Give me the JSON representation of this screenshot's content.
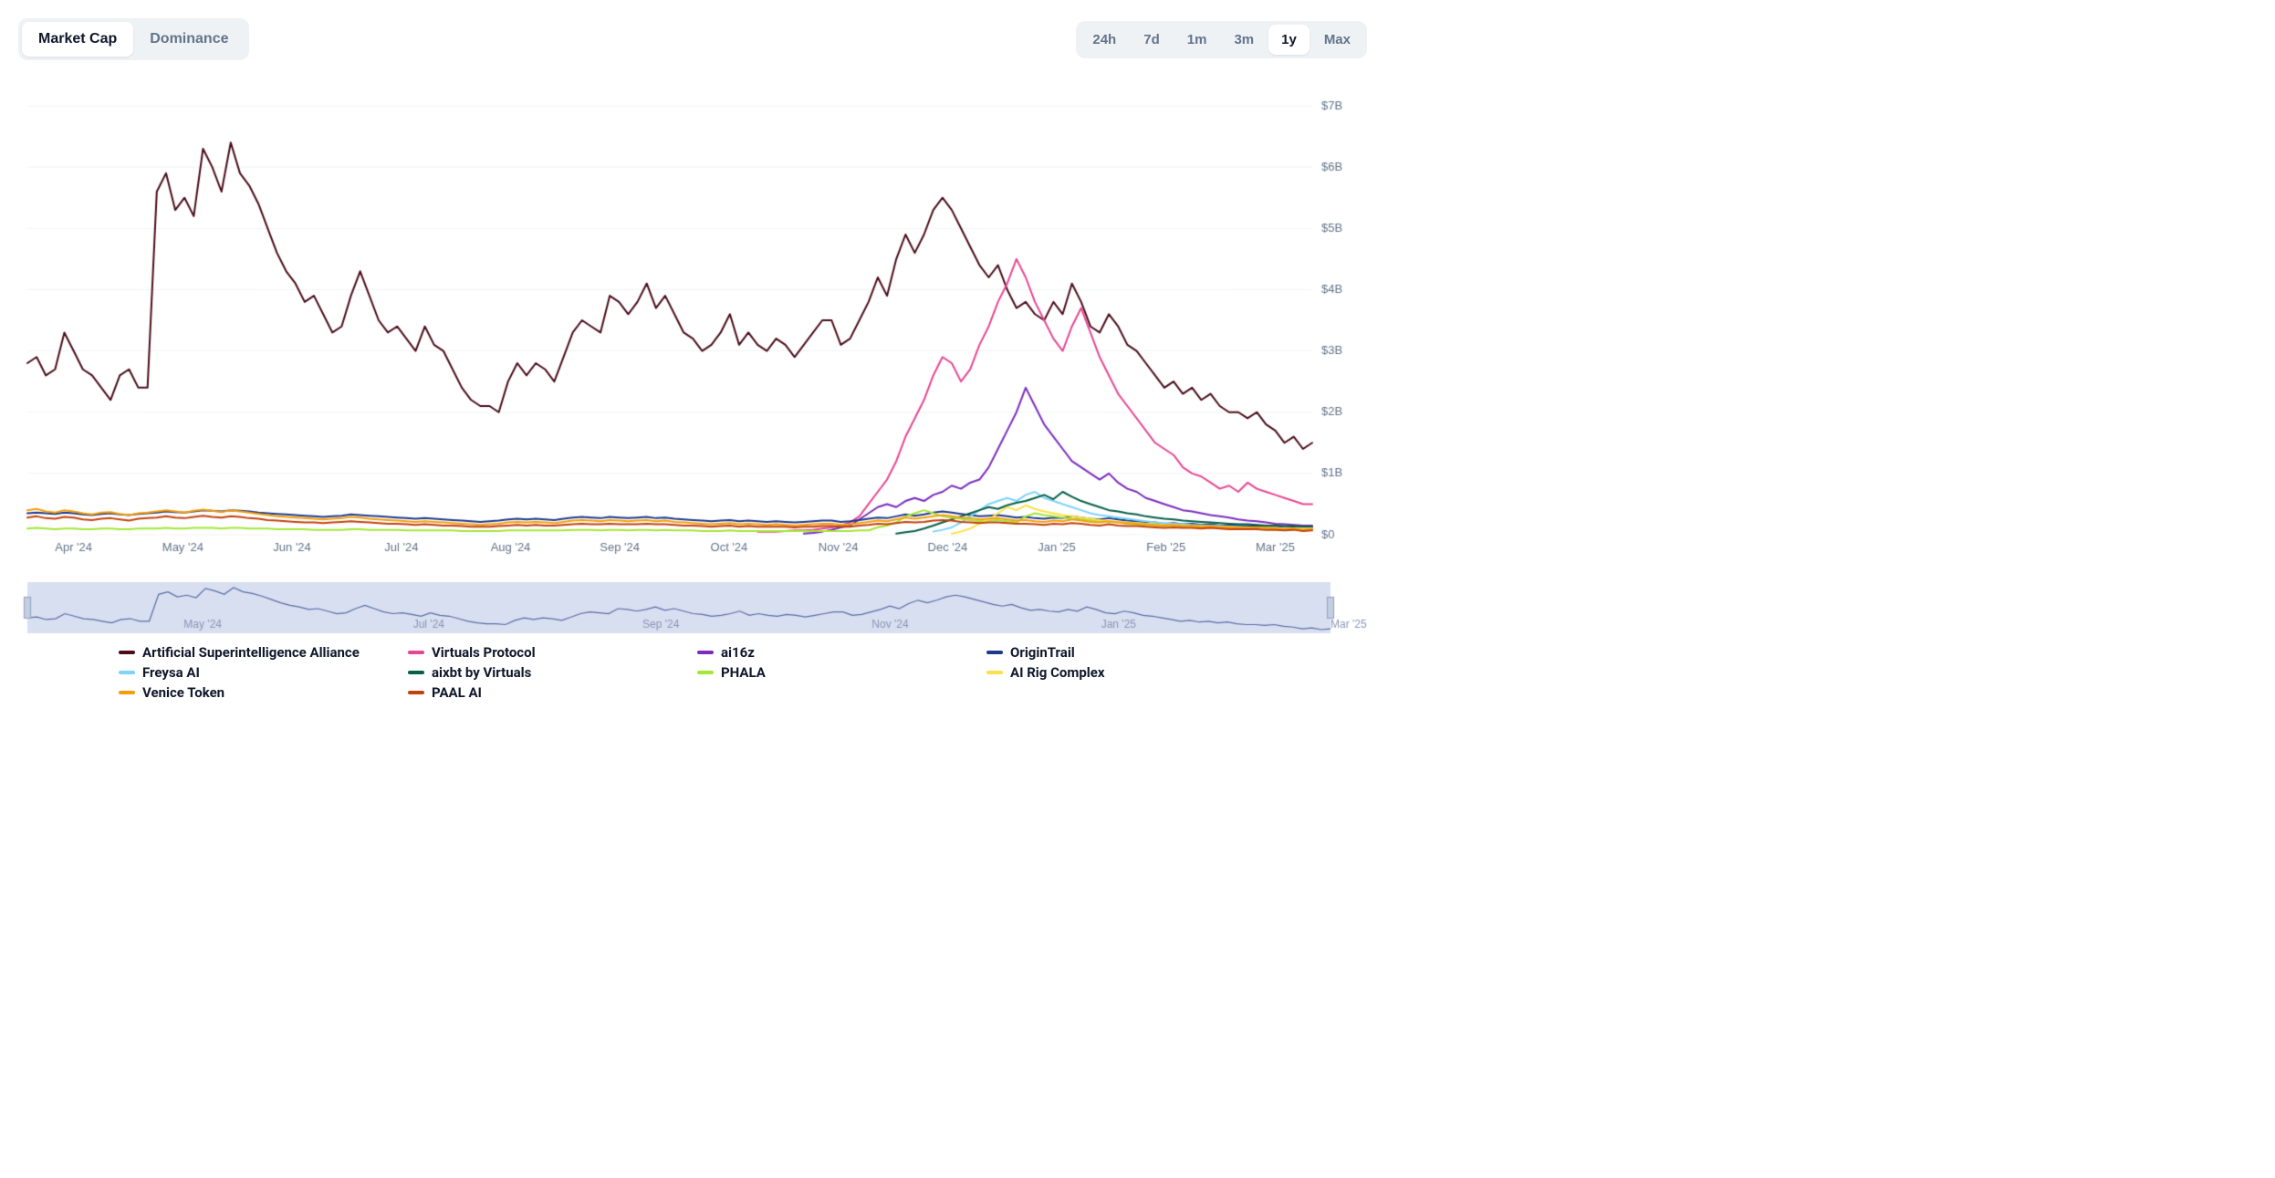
{
  "tabs": {
    "items": [
      {
        "label": "Market Cap",
        "active": true
      },
      {
        "label": "Dominance",
        "active": false
      }
    ]
  },
  "ranges": {
    "items": [
      {
        "label": "24h",
        "active": false
      },
      {
        "label": "7d",
        "active": false
      },
      {
        "label": "1m",
        "active": false
      },
      {
        "label": "3m",
        "active": false
      },
      {
        "label": "1y",
        "active": true
      },
      {
        "label": "Max",
        "active": false
      }
    ]
  },
  "chart": {
    "type": "line",
    "background_color": "#ffffff",
    "grid_color": "#f1f3f5",
    "axis_text_color": "#64748b",
    "axis_fontsize": 13,
    "yaxis": {
      "min": 0,
      "max": 7,
      "tick_step": 1,
      "tick_labels": [
        "$0",
        "$1B",
        "$2B",
        "$3B",
        "$4B",
        "$5B",
        "$6B",
        "$7B"
      ]
    },
    "xaxis": {
      "labels": [
        "Apr '24",
        "May '24",
        "Jun '24",
        "Jul '24",
        "Aug '24",
        "Sep '24",
        "Oct '24",
        "Nov '24",
        "Dec '24",
        "Jan '25",
        "Feb '25",
        "Mar '25"
      ]
    },
    "series": [
      {
        "name": "Artificial Superintelligence Alliance",
        "color": "#4a0d1a",
        "line_width": 2,
        "data": [
          2.8,
          2.9,
          2.6,
          2.7,
          3.3,
          3.0,
          2.7,
          2.6,
          2.4,
          2.2,
          2.6,
          2.7,
          2.4,
          2.4,
          5.6,
          5.9,
          5.3,
          5.5,
          5.2,
          6.3,
          6.0,
          5.6,
          6.4,
          5.9,
          5.7,
          5.4,
          5.0,
          4.6,
          4.3,
          4.1,
          3.8,
          3.9,
          3.6,
          3.3,
          3.4,
          3.9,
          4.3,
          3.9,
          3.5,
          3.3,
          3.4,
          3.2,
          3.0,
          3.4,
          3.1,
          3.0,
          2.7,
          2.4,
          2.2,
          2.1,
          2.1,
          2.0,
          2.5,
          2.8,
          2.6,
          2.8,
          2.7,
          2.5,
          2.9,
          3.3,
          3.5,
          3.4,
          3.3,
          3.9,
          3.8,
          3.6,
          3.8,
          4.1,
          3.7,
          3.9,
          3.6,
          3.3,
          3.2,
          3.0,
          3.1,
          3.3,
          3.6,
          3.1,
          3.3,
          3.1,
          3.0,
          3.2,
          3.1,
          2.9,
          3.1,
          3.3,
          3.5,
          3.5,
          3.1,
          3.2,
          3.5,
          3.8,
          4.2,
          3.9,
          4.5,
          4.9,
          4.6,
          4.9,
          5.3,
          5.5,
          5.3,
          5.0,
          4.7,
          4.4,
          4.2,
          4.4,
          4.0,
          3.7,
          3.8,
          3.6,
          3.5,
          3.8,
          3.6,
          4.1,
          3.8,
          3.4,
          3.3,
          3.6,
          3.4,
          3.1,
          3.0,
          2.8,
          2.6,
          2.4,
          2.5,
          2.3,
          2.4,
          2.2,
          2.3,
          2.1,
          2.0,
          2.0,
          1.9,
          2.0,
          1.8,
          1.7,
          1.5,
          1.6,
          1.4,
          1.5
        ]
      },
      {
        "name": "Virtuals Protocol",
        "color": "#e74694",
        "line_width": 2,
        "start_index": 79,
        "data": [
          0.05,
          0.05,
          0.05,
          0.06,
          0.07,
          0.07,
          0.08,
          0.1,
          0.12,
          0.15,
          0.2,
          0.3,
          0.5,
          0.7,
          0.9,
          1.2,
          1.6,
          1.9,
          2.2,
          2.6,
          2.9,
          2.8,
          2.5,
          2.7,
          3.1,
          3.4,
          3.8,
          4.1,
          4.5,
          4.2,
          3.8,
          3.5,
          3.2,
          3.0,
          3.4,
          3.7,
          3.3,
          2.9,
          2.6,
          2.3,
          2.1,
          1.9,
          1.7,
          1.5,
          1.4,
          1.3,
          1.1,
          1.0,
          0.95,
          0.85,
          0.75,
          0.8,
          0.7,
          0.85,
          0.75,
          0.7,
          0.65,
          0.6,
          0.55,
          0.5,
          0.5
        ]
      },
      {
        "name": "ai16z",
        "color": "#7b2cbf",
        "line_width": 2,
        "start_index": 84,
        "data": [
          0.02,
          0.03,
          0.05,
          0.08,
          0.12,
          0.15,
          0.25,
          0.35,
          0.45,
          0.5,
          0.45,
          0.55,
          0.6,
          0.55,
          0.65,
          0.7,
          0.8,
          0.75,
          0.85,
          0.9,
          1.1,
          1.4,
          1.7,
          2.0,
          2.4,
          2.1,
          1.8,
          1.6,
          1.4,
          1.2,
          1.1,
          1.0,
          0.9,
          1.0,
          0.85,
          0.75,
          0.7,
          0.6,
          0.55,
          0.5,
          0.45,
          0.4,
          0.38,
          0.35,
          0.32,
          0.3,
          0.28,
          0.25,
          0.23,
          0.22,
          0.2,
          0.18,
          0.17,
          0.16,
          0.15,
          0.15
        ]
      },
      {
        "name": "OriginTrail",
        "color": "#1e3a8a",
        "line_width": 2,
        "data": [
          0.35,
          0.36,
          0.35,
          0.34,
          0.36,
          0.35,
          0.33,
          0.32,
          0.34,
          0.35,
          0.33,
          0.32,
          0.34,
          0.35,
          0.36,
          0.38,
          0.37,
          0.36,
          0.38,
          0.4,
          0.39,
          0.38,
          0.4,
          0.39,
          0.38,
          0.36,
          0.35,
          0.34,
          0.33,
          0.32,
          0.31,
          0.3,
          0.29,
          0.3,
          0.31,
          0.33,
          0.32,
          0.31,
          0.3,
          0.29,
          0.28,
          0.27,
          0.26,
          0.27,
          0.26,
          0.25,
          0.24,
          0.23,
          0.22,
          0.21,
          0.22,
          0.23,
          0.25,
          0.26,
          0.25,
          0.26,
          0.25,
          0.24,
          0.26,
          0.28,
          0.29,
          0.28,
          0.27,
          0.29,
          0.28,
          0.27,
          0.28,
          0.29,
          0.27,
          0.28,
          0.26,
          0.25,
          0.24,
          0.23,
          0.22,
          0.23,
          0.24,
          0.22,
          0.23,
          0.22,
          0.21,
          0.22,
          0.21,
          0.2,
          0.21,
          0.22,
          0.23,
          0.23,
          0.21,
          0.22,
          0.24,
          0.26,
          0.28,
          0.27,
          0.3,
          0.33,
          0.31,
          0.33,
          0.36,
          0.38,
          0.36,
          0.34,
          0.32,
          0.3,
          0.31,
          0.32,
          0.3,
          0.28,
          0.29,
          0.27,
          0.26,
          0.28,
          0.27,
          0.3,
          0.28,
          0.26,
          0.25,
          0.27,
          0.25,
          0.23,
          0.22,
          0.21,
          0.2,
          0.18,
          0.19,
          0.17,
          0.18,
          0.16,
          0.17,
          0.15,
          0.15,
          0.15,
          0.14,
          0.15,
          0.13,
          0.13,
          0.11,
          0.12,
          0.1,
          0.11
        ]
      },
      {
        "name": "Freysa AI",
        "color": "#7dd3fc",
        "line_width": 2,
        "start_index": 98,
        "data": [
          0.05,
          0.08,
          0.12,
          0.2,
          0.3,
          0.4,
          0.5,
          0.55,
          0.6,
          0.55,
          0.65,
          0.7,
          0.6,
          0.55,
          0.5,
          0.45,
          0.4,
          0.35,
          0.32,
          0.3,
          0.28,
          0.26,
          0.24,
          0.22,
          0.2,
          0.19,
          0.18,
          0.17,
          0.16,
          0.15,
          0.15,
          0.14,
          0.13,
          0.13,
          0.12,
          0.12,
          0.11,
          0.11,
          0.1,
          0.1,
          0.1,
          0.1
        ]
      },
      {
        "name": "aixbt by Virtuals",
        "color": "#065f46",
        "line_width": 2,
        "start_index": 94,
        "data": [
          0.02,
          0.04,
          0.06,
          0.1,
          0.15,
          0.2,
          0.25,
          0.3,
          0.35,
          0.4,
          0.45,
          0.42,
          0.48,
          0.52,
          0.55,
          0.6,
          0.65,
          0.58,
          0.7,
          0.62,
          0.55,
          0.5,
          0.45,
          0.4,
          0.38,
          0.35,
          0.33,
          0.3,
          0.28,
          0.26,
          0.25,
          0.23,
          0.22,
          0.21,
          0.2,
          0.19,
          0.18,
          0.17,
          0.17,
          0.16,
          0.15,
          0.15,
          0.14,
          0.14,
          0.13,
          0.13
        ]
      },
      {
        "name": "PHALA",
        "color": "#a3e635",
        "line_width": 2,
        "data": [
          0.1,
          0.11,
          0.1,
          0.09,
          0.1,
          0.1,
          0.09,
          0.09,
          0.1,
          0.1,
          0.09,
          0.09,
          0.1,
          0.1,
          0.1,
          0.11,
          0.1,
          0.1,
          0.11,
          0.11,
          0.11,
          0.1,
          0.11,
          0.11,
          0.1,
          0.1,
          0.1,
          0.09,
          0.09,
          0.09,
          0.09,
          0.08,
          0.08,
          0.08,
          0.08,
          0.09,
          0.09,
          0.08,
          0.08,
          0.08,
          0.08,
          0.07,
          0.07,
          0.07,
          0.07,
          0.07,
          0.07,
          0.06,
          0.06,
          0.06,
          0.06,
          0.06,
          0.07,
          0.07,
          0.07,
          0.07,
          0.07,
          0.07,
          0.07,
          0.08,
          0.08,
          0.08,
          0.07,
          0.08,
          0.08,
          0.07,
          0.08,
          0.08,
          0.07,
          0.08,
          0.07,
          0.07,
          0.07,
          0.06,
          0.06,
          0.06,
          0.07,
          0.06,
          0.06,
          0.06,
          0.06,
          0.06,
          0.06,
          0.06,
          0.06,
          0.06,
          0.06,
          0.06,
          0.06,
          0.06,
          0.07,
          0.07,
          0.12,
          0.15,
          0.2,
          0.3,
          0.35,
          0.4,
          0.35,
          0.3,
          0.28,
          0.26,
          0.24,
          0.22,
          0.23,
          0.24,
          0.22,
          0.2,
          0.3,
          0.35,
          0.32,
          0.3,
          0.28,
          0.26,
          0.25,
          0.23,
          0.22,
          0.21,
          0.2,
          0.18,
          0.17,
          0.16,
          0.15,
          0.14,
          0.15,
          0.13,
          0.14,
          0.12,
          0.13,
          0.12,
          0.12,
          0.12,
          0.11,
          0.12,
          0.1,
          0.1,
          0.09,
          0.1,
          0.08,
          0.09
        ]
      },
      {
        "name": "AI Rig Complex",
        "color": "#fde047",
        "line_width": 2,
        "start_index": 100,
        "data": [
          0.02,
          0.05,
          0.1,
          0.18,
          0.25,
          0.35,
          0.45,
          0.4,
          0.48,
          0.42,
          0.38,
          0.35,
          0.32,
          0.3,
          0.28,
          0.26,
          0.24,
          0.22,
          0.21,
          0.2,
          0.19,
          0.18,
          0.17,
          0.16,
          0.16,
          0.15,
          0.15,
          0.14,
          0.14,
          0.13,
          0.13,
          0.12,
          0.12,
          0.11,
          0.11,
          0.11,
          0.1,
          0.1,
          0.1,
          0.1
        ]
      },
      {
        "name": "Venice Token",
        "color": "#f59e0b",
        "line_width": 2,
        "data": [
          0.4,
          0.42,
          0.38,
          0.36,
          0.4,
          0.38,
          0.35,
          0.33,
          0.36,
          0.37,
          0.34,
          0.32,
          0.35,
          0.36,
          0.38,
          0.4,
          0.38,
          0.36,
          0.39,
          0.41,
          0.39,
          0.37,
          0.4,
          0.38,
          0.36,
          0.34,
          0.32,
          0.3,
          0.29,
          0.28,
          0.27,
          0.26,
          0.25,
          0.26,
          0.27,
          0.29,
          0.28,
          0.26,
          0.25,
          0.24,
          0.23,
          0.22,
          0.21,
          0.22,
          0.21,
          0.2,
          0.19,
          0.18,
          0.17,
          0.16,
          0.17,
          0.18,
          0.2,
          0.21,
          0.2,
          0.21,
          0.2,
          0.19,
          0.21,
          0.23,
          0.24,
          0.23,
          0.22,
          0.24,
          0.23,
          0.22,
          0.23,
          0.24,
          0.22,
          0.23,
          0.21,
          0.2,
          0.19,
          0.18,
          0.17,
          0.18,
          0.19,
          0.17,
          0.18,
          0.17,
          0.16,
          0.17,
          0.16,
          0.15,
          0.16,
          0.17,
          0.18,
          0.18,
          0.16,
          0.17,
          0.19,
          0.21,
          0.23,
          0.22,
          0.25,
          0.28,
          0.26,
          0.28,
          0.3,
          0.32,
          0.3,
          0.28,
          0.27,
          0.25,
          0.26,
          0.27,
          0.25,
          0.23,
          0.24,
          0.22,
          0.21,
          0.23,
          0.22,
          0.25,
          0.23,
          0.21,
          0.2,
          0.22,
          0.2,
          0.19,
          0.18,
          0.17,
          0.16,
          0.15,
          0.16,
          0.14,
          0.15,
          0.13,
          0.14,
          0.12,
          0.12,
          0.12,
          0.11,
          0.12,
          0.11,
          0.1,
          0.09,
          0.1,
          0.08,
          0.09
        ]
      },
      {
        "name": "PAAL AI",
        "color": "#c2410c",
        "line_width": 2,
        "data": [
          0.28,
          0.3,
          0.27,
          0.26,
          0.29,
          0.28,
          0.25,
          0.24,
          0.26,
          0.27,
          0.25,
          0.23,
          0.26,
          0.27,
          0.28,
          0.3,
          0.28,
          0.27,
          0.29,
          0.31,
          0.29,
          0.28,
          0.3,
          0.29,
          0.27,
          0.26,
          0.24,
          0.23,
          0.22,
          0.21,
          0.2,
          0.2,
          0.19,
          0.2,
          0.21,
          0.22,
          0.21,
          0.2,
          0.19,
          0.18,
          0.18,
          0.17,
          0.16,
          0.17,
          0.16,
          0.15,
          0.15,
          0.14,
          0.13,
          0.13,
          0.13,
          0.14,
          0.15,
          0.16,
          0.15,
          0.16,
          0.15,
          0.15,
          0.16,
          0.17,
          0.18,
          0.17,
          0.17,
          0.18,
          0.17,
          0.17,
          0.17,
          0.18,
          0.17,
          0.17,
          0.16,
          0.15,
          0.15,
          0.14,
          0.13,
          0.14,
          0.15,
          0.13,
          0.14,
          0.13,
          0.13,
          0.13,
          0.13,
          0.12,
          0.13,
          0.13,
          0.14,
          0.14,
          0.13,
          0.13,
          0.15,
          0.16,
          0.18,
          0.17,
          0.19,
          0.21,
          0.2,
          0.21,
          0.23,
          0.24,
          0.23,
          0.21,
          0.2,
          0.19,
          0.2,
          0.2,
          0.19,
          0.18,
          0.18,
          0.17,
          0.16,
          0.18,
          0.17,
          0.19,
          0.18,
          0.16,
          0.15,
          0.17,
          0.15,
          0.14,
          0.14,
          0.13,
          0.12,
          0.11,
          0.12,
          0.11,
          0.11,
          0.1,
          0.11,
          0.1,
          0.09,
          0.09,
          0.09,
          0.09,
          0.08,
          0.08,
          0.07,
          0.08,
          0.06,
          0.07
        ]
      }
    ]
  },
  "navigator": {
    "background_color": "#d8dff0",
    "line_color": "#5a6fa8",
    "handle_color": "#c5cfe3",
    "xaxis_labels": [
      "May '24",
      "Jul '24",
      "Sep '24",
      "Nov '24",
      "Jan '25",
      "Mar '25"
    ]
  }
}
